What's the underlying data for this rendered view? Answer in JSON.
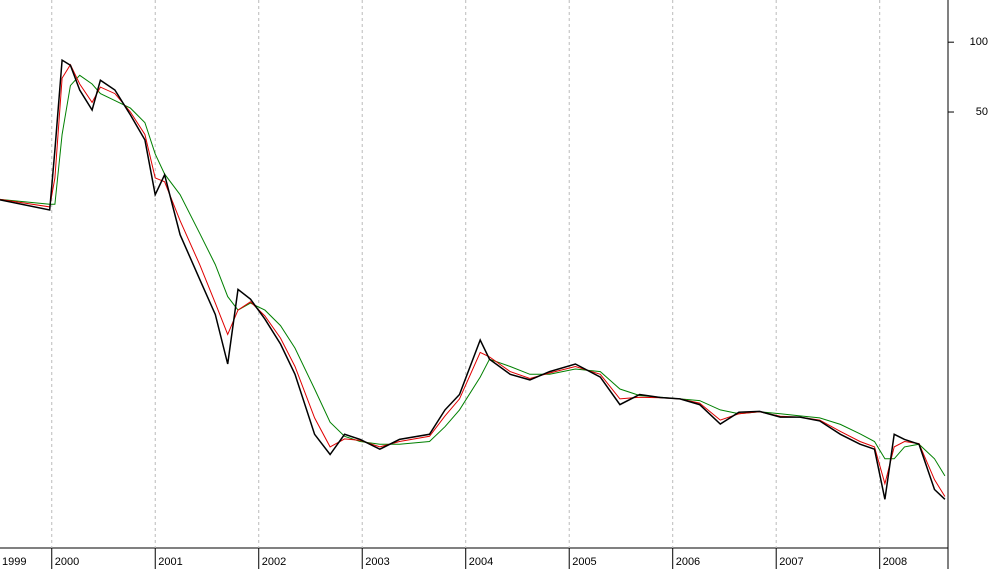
{
  "chart_data": {
    "type": "line",
    "log_y": true,
    "grid": true,
    "x": [
      1999.5,
      1999.98,
      2000.03,
      2000.1,
      2000.18,
      2000.27,
      2000.39,
      2000.47,
      2000.61,
      2000.76,
      2000.9,
      2001.0,
      2001.09,
      2001.24,
      2001.43,
      2001.58,
      2001.7,
      2001.8,
      2001.92,
      2002.06,
      2002.21,
      2002.35,
      2002.54,
      2002.69,
      2002.83,
      2002.98,
      2003.17,
      2003.36,
      2003.65,
      2003.8,
      2003.94,
      2004.14,
      2004.23,
      2004.43,
      2004.62,
      2004.81,
      2005.06,
      2005.3,
      2005.49,
      2005.68,
      2005.88,
      2006.07,
      2006.26,
      2006.46,
      2006.64,
      2006.84,
      2007.04,
      2007.23,
      2007.42,
      2007.62,
      2007.81,
      2007.95,
      2008.05,
      2008.14,
      2008.24,
      2008.38,
      2008.53,
      2008.63
    ],
    "series": [
      {
        "color": "#008000",
        "values": [
          21,
          20,
          20,
          40,
          65,
          72,
          66,
          60,
          56,
          52,
          45,
          33,
          27,
          22,
          15,
          11,
          8,
          7,
          7.5,
          7,
          6,
          4.8,
          3.2,
          2.3,
          2.0,
          1.9,
          1.85,
          1.85,
          1.9,
          2.2,
          2.6,
          3.6,
          4.3,
          4.0,
          3.7,
          3.7,
          3.9,
          3.8,
          3.2,
          3.0,
          2.95,
          2.9,
          2.85,
          2.6,
          2.5,
          2.55,
          2.5,
          2.45,
          2.4,
          2.25,
          2.05,
          1.9,
          1.6,
          1.6,
          1.8,
          1.85,
          1.6,
          1.35
        ]
      },
      {
        "color": "#e00000",
        "values": [
          21,
          19.5,
          26,
          70,
          80,
          66,
          55,
          64,
          60,
          50,
          40,
          26,
          25,
          17,
          11,
          7.5,
          5.5,
          7,
          7.6,
          6.6,
          5.3,
          4.0,
          2.4,
          1.8,
          1.95,
          1.92,
          1.8,
          1.9,
          2.0,
          2.45,
          2.9,
          4.6,
          4.4,
          3.8,
          3.55,
          3.75,
          4.0,
          3.7,
          2.9,
          2.95,
          2.93,
          2.9,
          2.78,
          2.35,
          2.5,
          2.55,
          2.44,
          2.42,
          2.35,
          2.1,
          1.9,
          1.8,
          1.25,
          1.8,
          1.9,
          1.86,
          1.3,
          1.1
        ]
      },
      {
        "color": "#000000",
        "values": [
          20.9,
          18.9,
          34.3,
          83.7,
          79.6,
          62.2,
          51.0,
          68.6,
          62.2,
          48.6,
          37.9,
          22.0,
          26.8,
          14.8,
          9.5,
          6.7,
          4.1,
          8.6,
          7.8,
          6.4,
          5.0,
          3.7,
          2.04,
          1.67,
          2.04,
          1.94,
          1.76,
          1.94,
          2.04,
          2.6,
          3.03,
          5.2,
          4.3,
          3.7,
          3.5,
          3.8,
          4.1,
          3.6,
          2.74,
          3.03,
          2.94,
          2.9,
          2.74,
          2.26,
          2.54,
          2.56,
          2.42,
          2.42,
          2.33,
          2.04,
          1.85,
          1.76,
          1.07,
          2.04,
          1.94,
          1.85,
          1.18,
          1.07
        ]
      }
    ],
    "xlim": [
      1999.5,
      2008.66
    ],
    "xticks": [
      1999,
      2000,
      2001,
      2002,
      2003,
      2004,
      2005,
      2006,
      2007,
      2008
    ],
    "ylim": [
      0.66,
      152
    ],
    "yticks": [
      100,
      50
    ]
  }
}
